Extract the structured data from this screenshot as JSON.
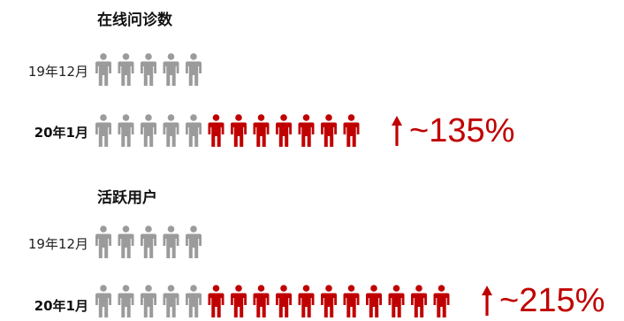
{
  "colors": {
    "baseline": "#9b9b9b",
    "growth": "#c00000",
    "text": "#111111"
  },
  "icon": "person-icon",
  "chart_data": [
    {
      "type": "pictograph",
      "title": "在线问诊数",
      "rows": [
        {
          "label": "19年12月",
          "count": 5,
          "bold": false
        },
        {
          "label": "20年1月",
          "count": 12,
          "baseline_count": 5,
          "bold": true
        }
      ],
      "growth_label": "~135%"
    },
    {
      "type": "pictograph",
      "title": "活跃用户",
      "rows": [
        {
          "label": "19年12月",
          "count": 5,
          "bold": false
        },
        {
          "label": "20年1月",
          "count": 16,
          "baseline_count": 5,
          "bold": true
        }
      ],
      "growth_label": "~215%"
    }
  ]
}
